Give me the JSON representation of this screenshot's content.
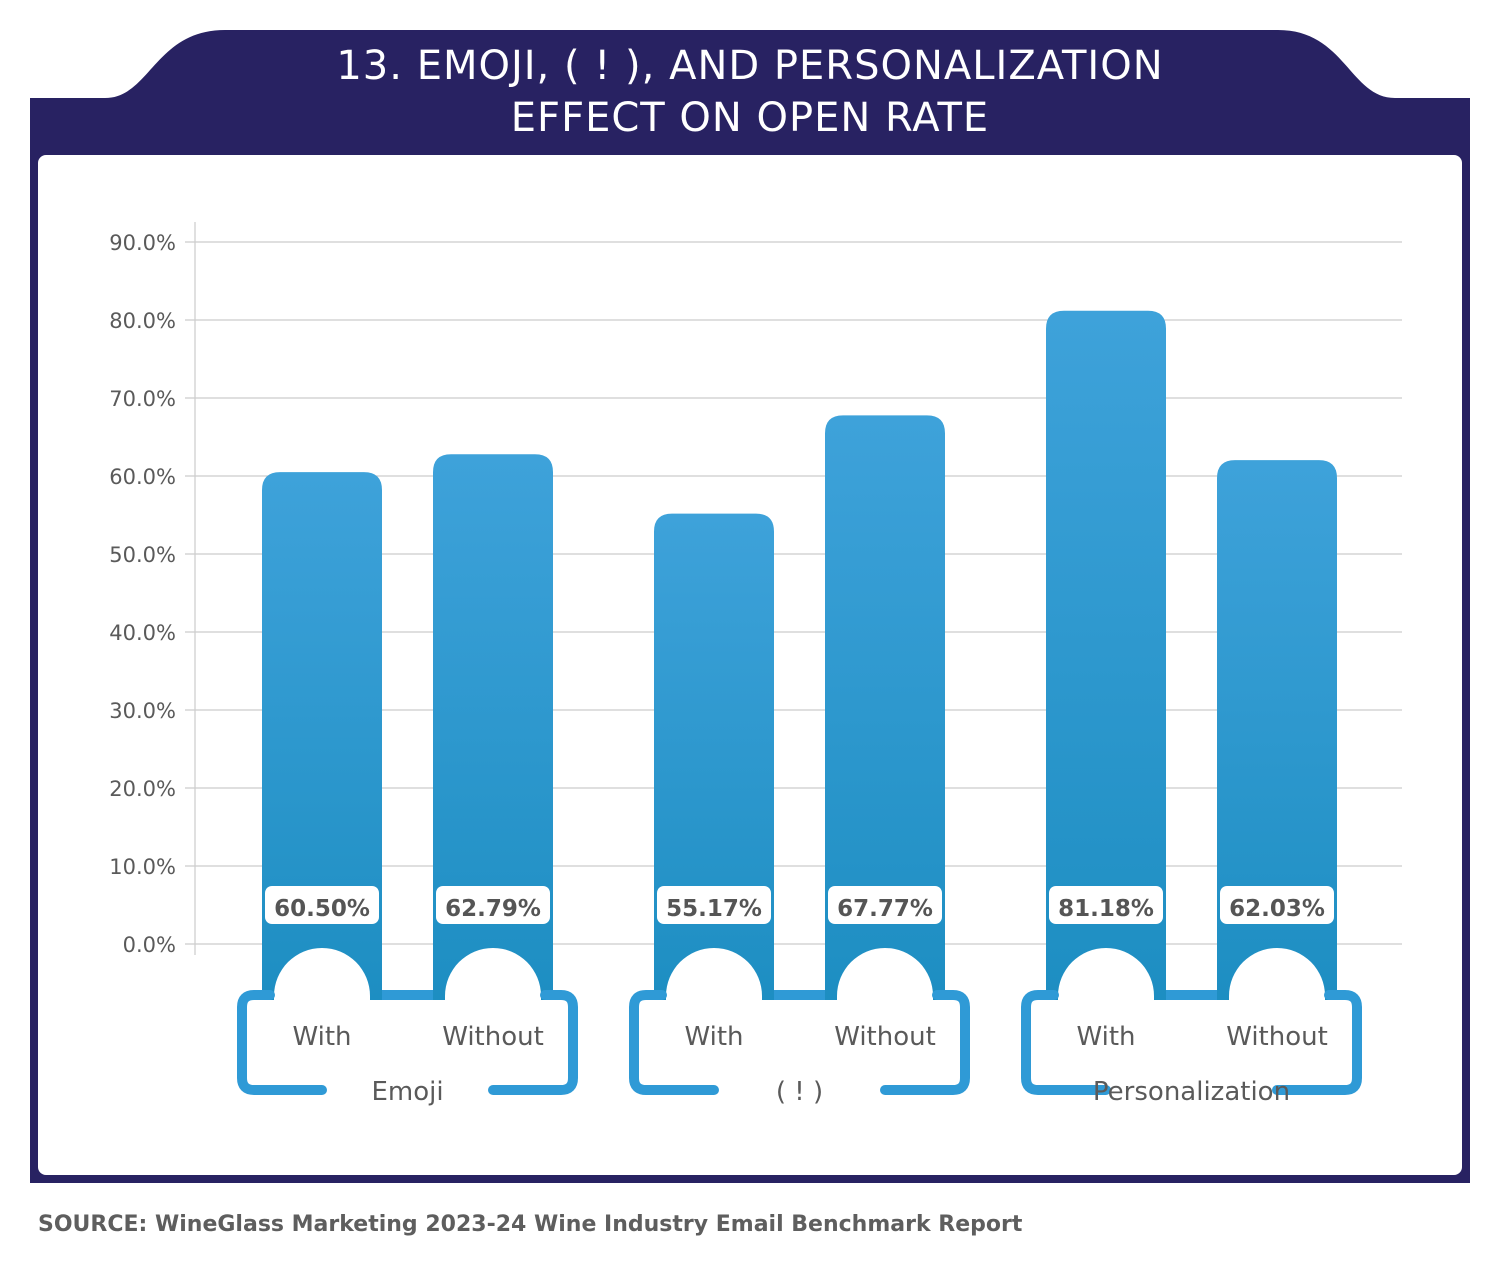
{
  "title": {
    "line1": "13. EMOJI, ( ! ), AND PERSONALIZATION",
    "line2": "EFFECT ON OPEN RATE"
  },
  "source": "SOURCE:  WineGlass Marketing 2023-24 Wine Industry Email Benchmark Report",
  "colors": {
    "frame": "#282262",
    "bar_top": "#3ea2da",
    "bar_bottom": "#1d8ec2",
    "bracket": "#2f9ad6",
    "grid": "#cccccc"
  },
  "chart_data": {
    "type": "bar",
    "title": "13. EMOJI, ( ! ), AND PERSONALIZATION EFFECT ON OPEN RATE",
    "ylim": [
      0,
      90
    ],
    "yticks": [
      "0.0%",
      "10.0%",
      "20.0%",
      "30.0%",
      "40.0%",
      "50.0%",
      "60.0%",
      "70.0%",
      "80.0%",
      "90.0%"
    ],
    "xlabel": "",
    "ylabel": "",
    "grid": true,
    "groups": [
      {
        "name": "Emoji",
        "bars": [
          {
            "label": "With",
            "value": 60.5,
            "display": "60.50%"
          },
          {
            "label": "Without",
            "value": 62.79,
            "display": "62.79%"
          }
        ]
      },
      {
        "name": "( ! )",
        "bars": [
          {
            "label": "With",
            "value": 55.17,
            "display": "55.17%"
          },
          {
            "label": "Without",
            "value": 67.77,
            "display": "67.77%"
          }
        ]
      },
      {
        "name": "Personalization",
        "bars": [
          {
            "label": "With",
            "value": 81.18,
            "display": "81.18%"
          },
          {
            "label": "Without",
            "value": 62.03,
            "display": "62.03%"
          }
        ]
      }
    ]
  }
}
